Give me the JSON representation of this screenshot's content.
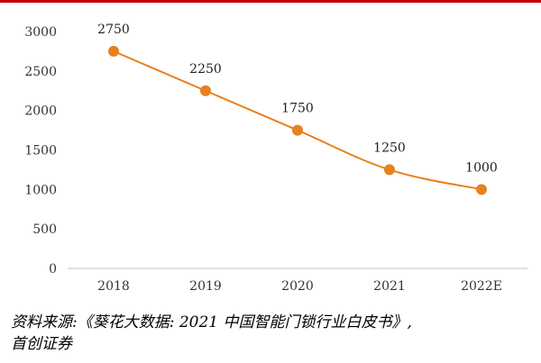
{
  "colors": {
    "accent": "#e8801e",
    "rule": "#c00000",
    "axis": "#bfbfbf"
  },
  "chart_data": {
    "type": "line",
    "categories": [
      "2018",
      "2019",
      "2020",
      "2021",
      "2022E"
    ],
    "series": [
      {
        "values": [
          2750,
          2250,
          1750,
          1250,
          1000
        ]
      }
    ],
    "data_labels": [
      "2750",
      "2250",
      "1750",
      "1250",
      "1000"
    ],
    "yticks": [
      "0",
      "500",
      "1000",
      "1500",
      "2000",
      "2500",
      "3000"
    ],
    "ylim": [
      0,
      3000
    ],
    "grid": false,
    "legend": "none",
    "marker": "circle",
    "smooth": true
  },
  "source": {
    "line1": "资料来源:《葵花大数据: 2021 中国智能门锁行业白皮书》,",
    "line2": "首创证券"
  }
}
